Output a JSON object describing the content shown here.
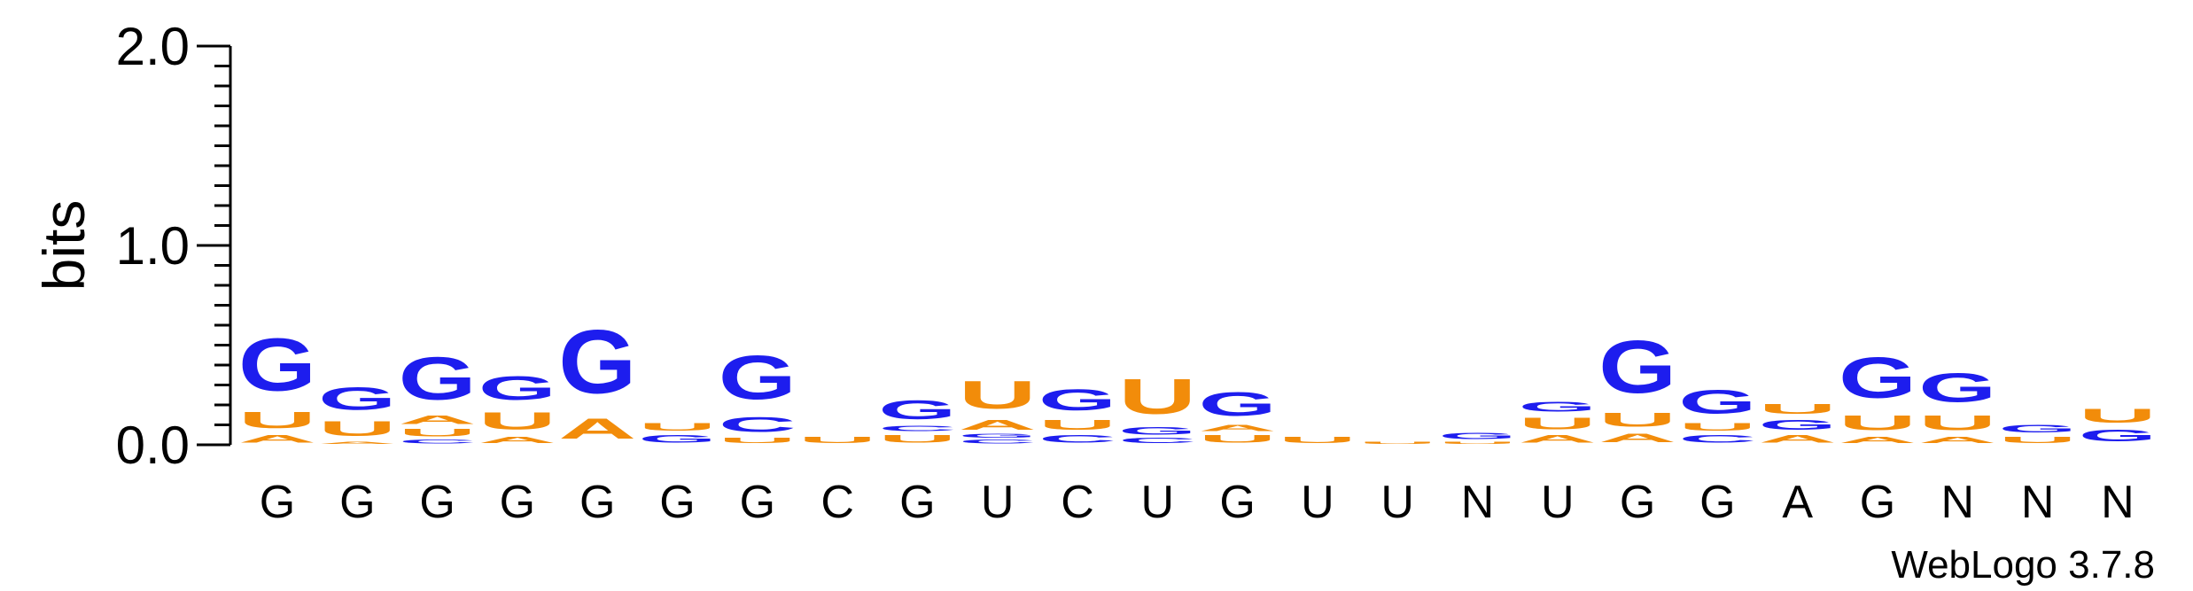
{
  "chart_data": {
    "type": "sequence-logo",
    "ylabel": "bits",
    "ylim": [
      0,
      2.0
    ],
    "yticks": [
      {
        "value": 2.0,
        "label": "2.0"
      },
      {
        "value": 1.0,
        "label": "1.0"
      },
      {
        "value": 0.0,
        "label": "0.0"
      }
    ],
    "positions": [
      "G",
      "G",
      "G",
      "G",
      "G",
      "G",
      "G",
      "C",
      "G",
      "U",
      "C",
      "U",
      "G",
      "U",
      "U",
      "N",
      "U",
      "G",
      "G",
      "A",
      "G",
      "N",
      "N",
      "N"
    ],
    "colors": {
      "G": "#1d1dee",
      "A": "#f28c0a",
      "U": "#f28c0a",
      "C": "#1d1dee"
    },
    "stacks": [
      [
        {
          "l": "A",
          "h": 0.06
        },
        {
          "l": "U",
          "h": 0.13
        },
        {
          "l": "G",
          "h": 0.42
        }
      ],
      [
        {
          "l": "A",
          "h": 0.02
        },
        {
          "l": "U",
          "h": 0.12
        },
        {
          "l": "G",
          "h": 0.18
        }
      ],
      [
        {
          "l": "C",
          "h": 0.03
        },
        {
          "l": "U",
          "h": 0.06
        },
        {
          "l": "A",
          "h": 0.07
        },
        {
          "l": "G",
          "h": 0.34
        }
      ],
      [
        {
          "l": "A",
          "h": 0.05
        },
        {
          "l": "U",
          "h": 0.14
        },
        {
          "l": "G",
          "h": 0.19
        }
      ],
      [
        {
          "l": "A",
          "h": 0.16
        },
        {
          "l": "G",
          "h": 0.51
        }
      ],
      [
        {
          "l": "G",
          "h": 0.06
        },
        {
          "l": "U",
          "h": 0.06
        }
      ],
      [
        {
          "l": "U",
          "h": 0.04
        },
        {
          "l": "C",
          "h": 0.12
        },
        {
          "l": "G",
          "h": 0.35
        }
      ],
      [
        {
          "l": "U",
          "h": 0.05
        }
      ],
      [
        {
          "l": "U",
          "h": 0.06
        },
        {
          "l": "C",
          "h": 0.04
        },
        {
          "l": "G",
          "h": 0.15
        }
      ],
      [
        {
          "l": "C",
          "h": 0.03
        },
        {
          "l": "G",
          "h": 0.03
        },
        {
          "l": "A",
          "h": 0.08
        },
        {
          "l": "U",
          "h": 0.22
        }
      ],
      [
        {
          "l": "C",
          "h": 0.06
        },
        {
          "l": "U",
          "h": 0.08
        },
        {
          "l": "G",
          "h": 0.17
        }
      ],
      [
        {
          "l": "C",
          "h": 0.04
        },
        {
          "l": "G",
          "h": 0.06
        },
        {
          "l": "U",
          "h": 0.28
        }
      ],
      [
        {
          "l": "U",
          "h": 0.06
        },
        {
          "l": "A",
          "h": 0.05
        },
        {
          "l": "G",
          "h": 0.19
        }
      ],
      [
        {
          "l": "U",
          "h": 0.05
        }
      ],
      [
        {
          "l": "U",
          "h": 0.02
        }
      ],
      [
        {
          "l": "U",
          "h": 0.02
        },
        {
          "l": "G",
          "h": 0.05
        }
      ],
      [
        {
          "l": "A",
          "h": 0.06
        },
        {
          "l": "U",
          "h": 0.09
        },
        {
          "l": "G",
          "h": 0.08
        }
      ],
      [
        {
          "l": "A",
          "h": 0.07
        },
        {
          "l": "U",
          "h": 0.11
        },
        {
          "l": "G",
          "h": 0.42
        }
      ],
      [
        {
          "l": "C",
          "h": 0.06
        },
        {
          "l": "U",
          "h": 0.06
        },
        {
          "l": "G",
          "h": 0.19
        }
      ],
      [
        {
          "l": "A",
          "h": 0.06
        },
        {
          "l": "G",
          "h": 0.08
        },
        {
          "l": "U",
          "h": 0.08
        }
      ],
      [
        {
          "l": "A",
          "h": 0.05
        },
        {
          "l": "U",
          "h": 0.12
        },
        {
          "l": "G",
          "h": 0.33
        }
      ],
      [
        {
          "l": "A",
          "h": 0.05
        },
        {
          "l": "U",
          "h": 0.12
        },
        {
          "l": "G",
          "h": 0.23
        }
      ],
      [
        {
          "l": "U",
          "h": 0.05
        },
        {
          "l": "G",
          "h": 0.06
        }
      ],
      [
        {
          "l": "G",
          "h": 0.09
        },
        {
          "l": "U",
          "h": 0.11
        }
      ]
    ]
  },
  "credit": "WebLogo 3.7.8"
}
